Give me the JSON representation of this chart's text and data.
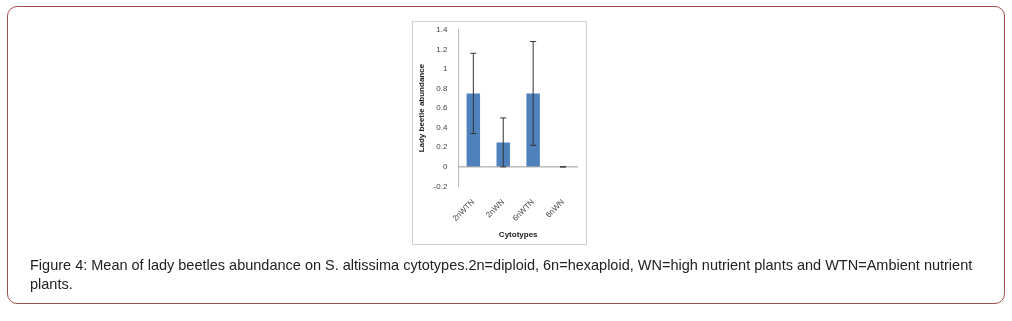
{
  "chart_data": {
    "type": "bar",
    "xlabel": "Cytotypes",
    "ylabel": "Lady beetle abundance",
    "categories": [
      "2nWTN",
      "2nWN",
      "6nWTN",
      "6nWN"
    ],
    "values": [
      0.75,
      0.25,
      0.75,
      0
    ],
    "errors": [
      0.41,
      0.25,
      0.53,
      0
    ],
    "color": "#4f81bd",
    "ylim": [
      -0.2,
      1.4
    ],
    "yticks": [
      -0.2,
      0,
      0.2,
      0.4,
      0.6,
      0.8,
      1,
      1.2,
      1.4
    ],
    "grid": false,
    "legend": false,
    "ref_lines": [
      {
        "axis": "y",
        "value": 0,
        "color": "#999999"
      }
    ],
    "annotations": [
      "Figure 4: Mean of lady beetles abundance on S. altissima cytotypes.2n=diploid, 6n=hexaploid, WN=high nutrient plants and WTN=Ambient nutrient plants."
    ]
  }
}
